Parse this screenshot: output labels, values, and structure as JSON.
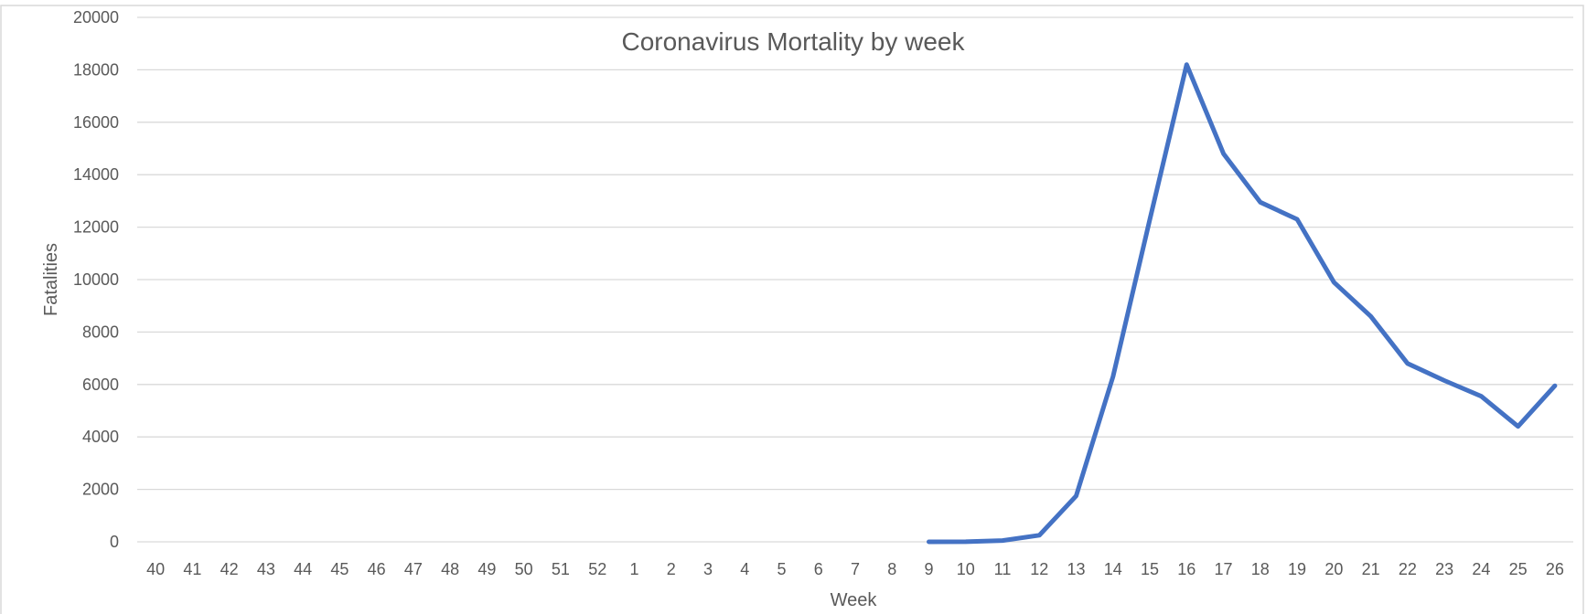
{
  "chart_data": {
    "type": "line",
    "title": "Coronavirus Mortality by week",
    "xlabel": "Week",
    "ylabel": "Fatalities",
    "ylim": [
      0,
      20000
    ],
    "yticks": [
      0,
      2000,
      4000,
      6000,
      8000,
      10000,
      12000,
      14000,
      16000,
      18000,
      20000
    ],
    "grid": true,
    "categories": [
      "40",
      "41",
      "42",
      "43",
      "44",
      "45",
      "46",
      "47",
      "48",
      "49",
      "50",
      "51",
      "52",
      "1",
      "2",
      "3",
      "4",
      "5",
      "6",
      "7",
      "8",
      "9",
      "10",
      "11",
      "12",
      "13",
      "14",
      "15",
      "16",
      "17",
      "18",
      "19",
      "20",
      "21",
      "22",
      "23",
      "24",
      "25",
      "26"
    ],
    "series": [
      {
        "name": "Fatalities",
        "color": "#4472c4",
        "values": [
          null,
          null,
          null,
          null,
          null,
          null,
          null,
          null,
          null,
          null,
          null,
          null,
          null,
          null,
          null,
          null,
          null,
          null,
          null,
          null,
          null,
          0,
          5,
          50,
          250,
          1750,
          6300,
          12300,
          18200,
          14800,
          12950,
          12300,
          9900,
          8600,
          6800,
          6150,
          5550,
          4400,
          5950
        ]
      }
    ]
  }
}
